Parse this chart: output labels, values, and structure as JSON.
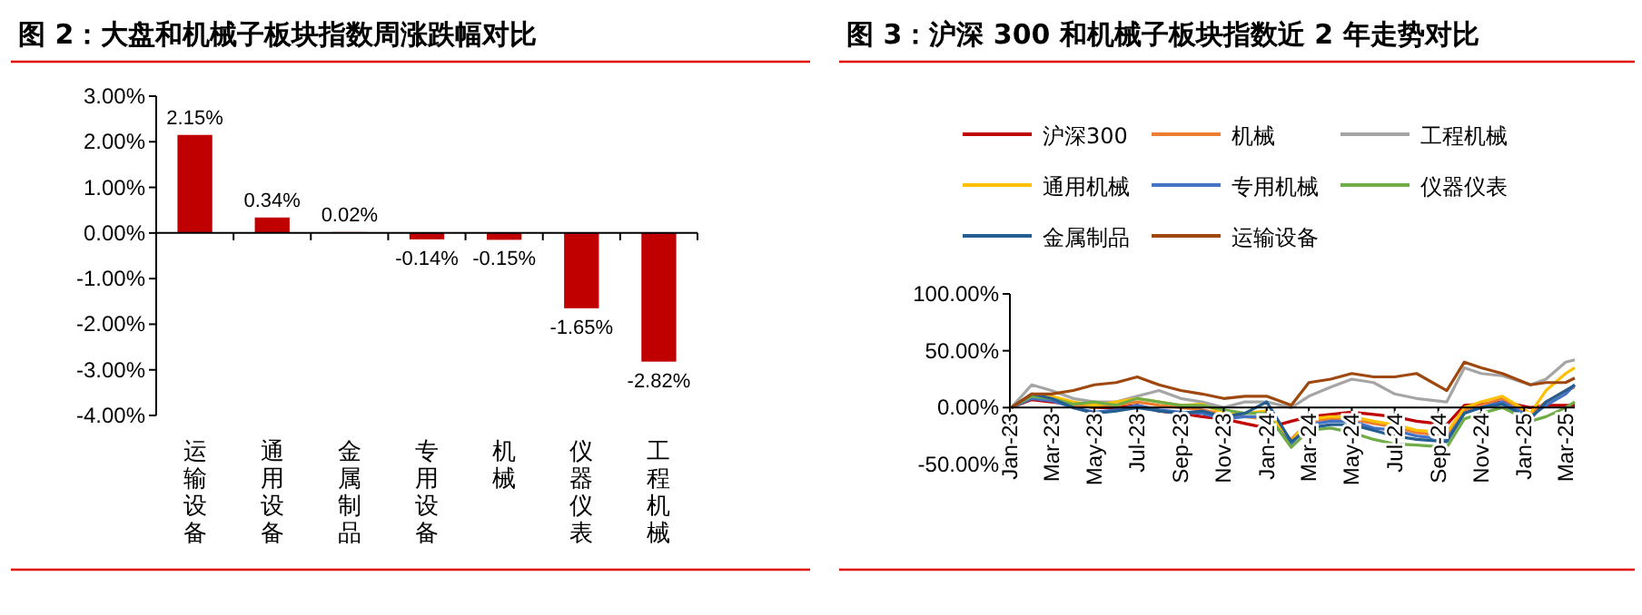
{
  "chart_data": [
    {
      "type": "bar",
      "title": "图 2：大盘和机械子板块指数周涨跌幅对比",
      "categories": [
        "运输设备",
        "通用设备",
        "金属制品",
        "专用设备",
        "机械",
        "仪器仪表",
        "工程机械"
      ],
      "values": [
        2.15,
        0.34,
        0.02,
        -0.14,
        -0.15,
        -1.65,
        -2.82
      ],
      "value_labels": [
        "2.15%",
        "0.34%",
        "0.02%",
        "-0.14%",
        "-0.15%",
        "-1.65%",
        "-2.82%"
      ],
      "color": "#c00000",
      "ylim": [
        -4,
        3
      ],
      "yticks": [
        {
          "value": 3,
          "label": "3.00%"
        },
        {
          "value": 2,
          "label": "2.00%"
        },
        {
          "value": 1,
          "label": "1.00%"
        },
        {
          "value": 0,
          "label": "0.00%"
        },
        {
          "value": -1,
          "label": "-1.00%"
        },
        {
          "value": -2,
          "label": "-2.00%"
        },
        {
          "value": -3,
          "label": "-3.00%"
        },
        {
          "value": -4,
          "label": "-4.00%"
        }
      ]
    },
    {
      "type": "line",
      "title": "图 3：沪深 300 和机械子板块指数近 2 年走势对比",
      "x": [
        "2023-01-03",
        "2023-02-01",
        "2023-03-01",
        "2023-04-01",
        "2023-05-01",
        "2023-06-01",
        "2023-07-01",
        "2023-08-01",
        "2023-09-01",
        "2023-10-01",
        "2023-11-01",
        "2023-12-01",
        "2024-01-01",
        "2024-02-05",
        "2024-03-01",
        "2024-04-01",
        "2024-05-01",
        "2024-06-01",
        "2024-07-01",
        "2024-08-01",
        "2024-09-13",
        "2024-10-08",
        "2024-11-01",
        "2024-12-01",
        "2025-01-10",
        "2025-02-01",
        "2025-03-01",
        "2025-03-14"
      ],
      "xlim": [
        "2023-01-01",
        "2025-03-14"
      ],
      "xticks": [
        {
          "value": "2023-01-01",
          "label": "Jan-23"
        },
        {
          "value": "2023-03-01",
          "label": "Mar-23"
        },
        {
          "value": "2023-05-01",
          "label": "May-23"
        },
        {
          "value": "2023-07-01",
          "label": "Jul-23"
        },
        {
          "value": "2023-09-01",
          "label": "Sep-23"
        },
        {
          "value": "2023-11-01",
          "label": "Nov-23"
        },
        {
          "value": "2024-01-01",
          "label": "Jan-24"
        },
        {
          "value": "2024-03-01",
          "label": "Mar-24"
        },
        {
          "value": "2024-05-01",
          "label": "May-24"
        },
        {
          "value": "2024-07-01",
          "label": "Jul-24"
        },
        {
          "value": "2024-09-01",
          "label": "Sep-24"
        },
        {
          "value": "2024-11-01",
          "label": "Nov-24"
        },
        {
          "value": "2025-01-01",
          "label": "Jan-25"
        },
        {
          "value": "2025-03-01",
          "label": "Mar-25"
        }
      ],
      "ylim": [
        -50,
        100
      ],
      "yticks": [
        {
          "value": 100,
          "label": "100.00%"
        },
        {
          "value": 50,
          "label": "50.00%"
        },
        {
          "value": 0,
          "label": "0.00%"
        },
        {
          "value": -50,
          "label": "-50.00%"
        }
      ],
      "legend": "top",
      "series": [
        {
          "name": "沪深300",
          "color": "#c00000",
          "values": [
            0,
            7,
            5,
            3,
            0,
            0,
            2,
            -3,
            -5,
            -8,
            -10,
            -14,
            -18,
            -12,
            -8,
            -6,
            -4,
            -6,
            -8,
            -12,
            -15,
            2,
            3,
            5,
            0,
            2,
            2,
            2
          ]
        },
        {
          "name": "机械",
          "color": "#ed7d31",
          "values": [
            0,
            10,
            8,
            3,
            0,
            2,
            5,
            2,
            0,
            -2,
            -6,
            -8,
            -10,
            -28,
            -12,
            -10,
            -10,
            -14,
            -17,
            -22,
            -25,
            -2,
            2,
            8,
            -6,
            5,
            15,
            18
          ]
        },
        {
          "name": "工程机械",
          "color": "#a5a5a5",
          "values": [
            0,
            20,
            15,
            8,
            5,
            5,
            10,
            15,
            8,
            5,
            0,
            5,
            5,
            0,
            10,
            18,
            25,
            22,
            12,
            8,
            5,
            35,
            30,
            28,
            20,
            25,
            40,
            42
          ]
        },
        {
          "name": "通用机械",
          "color": "#ffc000",
          "values": [
            0,
            12,
            10,
            5,
            2,
            5,
            8,
            5,
            2,
            3,
            -5,
            -5,
            -3,
            -30,
            -10,
            -8,
            -8,
            -12,
            -15,
            -20,
            -22,
            0,
            5,
            10,
            -5,
            15,
            30,
            35
          ]
        },
        {
          "name": "专用机械",
          "color": "#4472c4",
          "values": [
            0,
            8,
            6,
            0,
            -4,
            -2,
            2,
            -2,
            -4,
            -5,
            -10,
            -8,
            -8,
            -32,
            -15,
            -12,
            -12,
            -18,
            -20,
            -25,
            -28,
            -5,
            0,
            5,
            -8,
            2,
            12,
            20
          ]
        },
        {
          "name": "仪器仪表",
          "color": "#70ad47",
          "values": [
            0,
            10,
            8,
            3,
            5,
            2,
            8,
            5,
            2,
            2,
            -2,
            -5,
            -5,
            -35,
            -20,
            -18,
            -22,
            -28,
            -32,
            -33,
            -35,
            -10,
            -5,
            0,
            -12,
            -8,
            0,
            5
          ]
        },
        {
          "name": "金属制品",
          "color": "#255e91",
          "values": [
            0,
            12,
            8,
            0,
            -5,
            -3,
            0,
            -3,
            -5,
            -3,
            -8,
            -5,
            5,
            -30,
            -18,
            -15,
            -15,
            -20,
            -25,
            -28,
            -30,
            -5,
            0,
            3,
            -10,
            5,
            15,
            20
          ]
        },
        {
          "name": "运输设备",
          "color": "#9e480e",
          "values": [
            0,
            12,
            12,
            15,
            20,
            22,
            27,
            20,
            15,
            12,
            8,
            10,
            10,
            2,
            22,
            25,
            30,
            27,
            27,
            30,
            15,
            40,
            35,
            30,
            20,
            22,
            22,
            26
          ]
        }
      ]
    }
  ]
}
